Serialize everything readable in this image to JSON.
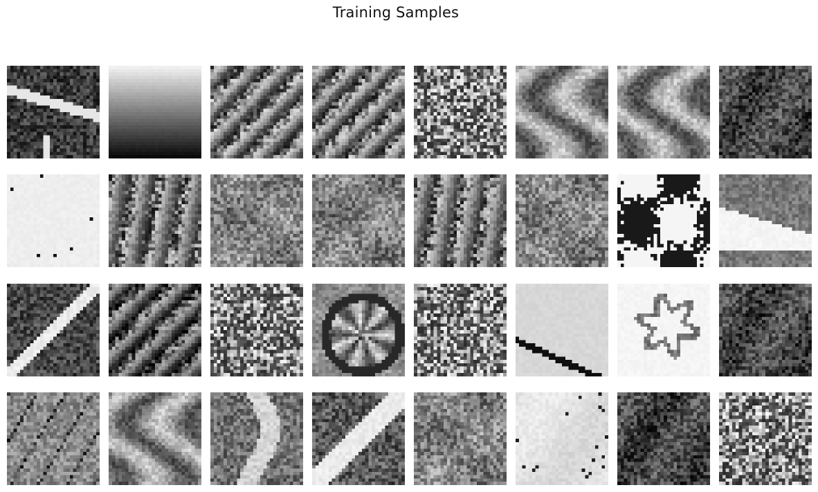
{
  "figure": {
    "title": "Training Samples"
  },
  "grid": {
    "rows": 4,
    "cols": 8,
    "patch_resolution": 28,
    "colormap": "grayscale"
  },
  "samples": [
    {
      "texture": "dark-with-bright-streak",
      "tone": "dark"
    },
    {
      "texture": "vertical-gradient-light-to-dark",
      "tone": "gradient"
    },
    {
      "texture": "diagonal-fibers",
      "tone": "mid-gray"
    },
    {
      "texture": "diagonal-stripes",
      "tone": "mid-gray"
    },
    {
      "texture": "speckled-noise",
      "tone": "dark"
    },
    {
      "texture": "swirled-mixed",
      "tone": "mid-gray"
    },
    {
      "texture": "curved-fibers",
      "tone": "mid-gray"
    },
    {
      "texture": "dark-speckle",
      "tone": "dark"
    },
    {
      "texture": "near-white-flat",
      "tone": "light"
    },
    {
      "texture": "vertical-fibers",
      "tone": "mid-gray"
    },
    {
      "texture": "blotchy-dark",
      "tone": "dark"
    },
    {
      "texture": "mottled-light",
      "tone": "mid-gray"
    },
    {
      "texture": "fibrous",
      "tone": "mid-gray"
    },
    {
      "texture": "granular",
      "tone": "mid-gray"
    },
    {
      "texture": "high-contrast-blobs",
      "tone": "contrast"
    },
    {
      "texture": "light-wedge",
      "tone": "light"
    },
    {
      "texture": "dark-with-bright-diagonal",
      "tone": "dark"
    },
    {
      "texture": "dark-fibers-diagonal",
      "tone": "dark"
    },
    {
      "texture": "salt-and-pepper",
      "tone": "contrast"
    },
    {
      "texture": "radial-cell",
      "tone": "mid-gray"
    },
    {
      "texture": "dense-speckle",
      "tone": "dark"
    },
    {
      "texture": "light-with-dark-edge-line",
      "tone": "light"
    },
    {
      "texture": "light-with-outline-shape",
      "tone": "light"
    },
    {
      "texture": "dark-mottled",
      "tone": "dark"
    },
    {
      "texture": "cracked-surface",
      "tone": "mid-gray"
    },
    {
      "texture": "smooth-folds",
      "tone": "mid-gray"
    },
    {
      "texture": "bright-vertical-band",
      "tone": "mid-gray"
    },
    {
      "texture": "bright-diagonal-band",
      "tone": "contrast"
    },
    {
      "texture": "soft-mottled",
      "tone": "mid-gray"
    },
    {
      "texture": "pale-with-dots",
      "tone": "light"
    },
    {
      "texture": "fine-dark-grain",
      "tone": "dark"
    },
    {
      "texture": "dark-speckle-dense",
      "tone": "dark"
    }
  ]
}
